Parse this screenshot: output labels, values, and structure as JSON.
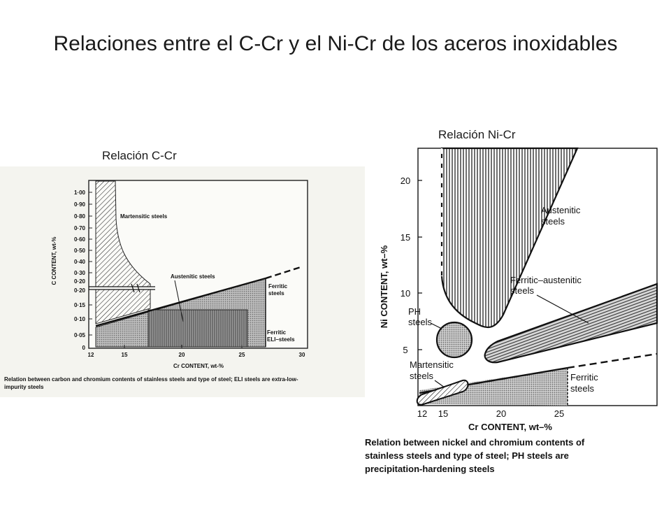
{
  "slide": {
    "title": "Relaciones entre el C-Cr y el Ni-Cr de los aceros inoxidables",
    "caption_ccr": "Relación C-Cr",
    "caption_nicr": "Relación Ni-Cr"
  },
  "ccr_diagram": {
    "y_axis_label": "C CONTENT, wt-%",
    "x_axis_label": "Cr CONTENT, wt-%",
    "y_ticks_upper": [
      "1·00",
      "0·90",
      "0·80",
      "0·70",
      "0·60",
      "0·50",
      "0·40",
      "0·30",
      "0·20"
    ],
    "y_ticks_lower": [
      "0·20",
      "0·15",
      "0·10",
      "0·05",
      "0"
    ],
    "x_ticks": [
      "12",
      "15",
      "20",
      "25",
      "30"
    ],
    "regions": {
      "martensitic": "Martensitic steels",
      "austenitic": "Austenitic steels",
      "ferritic_line1": "Ferritic",
      "ferritic_line2": "steels",
      "ferritic_eli_line1": "Ferritic",
      "ferritic_eli_line2": "ELI–steels"
    },
    "figure_caption_line1": "Relation between carbon and chromium contents of stainless steels and type of steel; ELI steels are extra-low-",
    "figure_caption_line2": "impurity steels"
  },
  "nicr_diagram": {
    "y_axis_label": "Ni CONTENT, wt–%",
    "x_axis_label": "Cr CONTENT, wt–%",
    "y_ticks": [
      "20",
      "15",
      "10",
      "5"
    ],
    "x_ticks": [
      "12",
      "15",
      "20",
      "25"
    ],
    "regions": {
      "austenitic_line1": "Austenitic",
      "austenitic_line2": "steels",
      "ferritic_austenitic_line1": "Ferritic–austenitic",
      "ferritic_austenitic_line2": "steels",
      "ph_line1": "PH",
      "ph_line2": "steels",
      "martensitic_line1": "Martensitic",
      "martensitic_line2": "steels",
      "ferritic_line1": "Ferritic",
      "ferritic_line2": "steels"
    },
    "figure_caption_line1": "Relation between nickel and chromium contents of",
    "figure_caption_line2": "stainless steels and type of steel; PH steels are",
    "figure_caption_line3": "precipitation-hardening steels"
  }
}
